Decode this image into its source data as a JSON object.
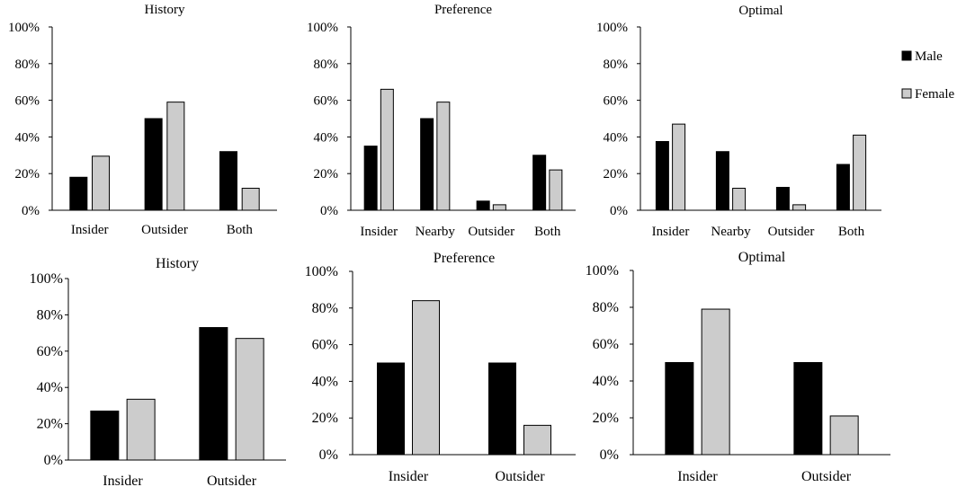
{
  "legend": {
    "position": "top-right",
    "items": [
      {
        "name": "Male",
        "color": "#000000"
      },
      {
        "name": "Female",
        "color": "#cccccc"
      }
    ]
  },
  "colors": {
    "male": "#000000",
    "female": "#cccccc",
    "axis": "#000000"
  },
  "chart_data": [
    {
      "type": "bar",
      "title": "History",
      "categories": [
        "Insider",
        "Outsider",
        "Both"
      ],
      "series": [
        {
          "name": "Male",
          "values": [
            18,
            50,
            32
          ]
        },
        {
          "name": "Female",
          "values": [
            29.5,
            59,
            12
          ]
        }
      ],
      "ylim": [
        0,
        100
      ],
      "yticks": [
        "0%",
        "20%",
        "40%",
        "60%",
        "80%",
        "100%"
      ],
      "xlabel": "",
      "ylabel": "",
      "grid": false
    },
    {
      "type": "bar",
      "title": "Preference",
      "categories": [
        "Insider",
        "Nearby",
        "Outsider",
        "Both"
      ],
      "series": [
        {
          "name": "Male",
          "values": [
            35,
            50,
            5,
            30
          ]
        },
        {
          "name": "Female",
          "values": [
            66,
            59,
            3,
            22
          ]
        }
      ],
      "ylim": [
        0,
        100
      ],
      "yticks": [
        "0%",
        "20%",
        "40%",
        "60%",
        "80%",
        "100%"
      ],
      "xlabel": "",
      "ylabel": "",
      "grid": false
    },
    {
      "type": "bar",
      "title": "Optimal",
      "categories": [
        "Insider",
        "Nearby",
        "Outsider",
        "Both"
      ],
      "series": [
        {
          "name": "Male",
          "values": [
            37.5,
            32,
            12.5,
            25
          ]
        },
        {
          "name": "Female",
          "values": [
            47,
            12,
            3,
            41
          ]
        }
      ],
      "ylim": [
        0,
        100
      ],
      "yticks": [
        "0%",
        "20%",
        "40%",
        "60%",
        "80%",
        "100%"
      ],
      "xlabel": "",
      "ylabel": "",
      "grid": false
    },
    {
      "type": "bar",
      "title": "History",
      "categories": [
        "Insider",
        "Outsider"
      ],
      "series": [
        {
          "name": "Male",
          "values": [
            27,
            73
          ]
        },
        {
          "name": "Female",
          "values": [
            33.5,
            67
          ]
        }
      ],
      "ylim": [
        0,
        100
      ],
      "yticks": [
        "0%",
        "20%",
        "40%",
        "60%",
        "80%",
        "100%"
      ],
      "xlabel": "",
      "ylabel": "",
      "grid": false
    },
    {
      "type": "bar",
      "title": "Preference",
      "categories": [
        "Insider",
        "Outsider"
      ],
      "series": [
        {
          "name": "Male",
          "values": [
            50,
            50
          ]
        },
        {
          "name": "Female",
          "values": [
            84,
            16
          ]
        }
      ],
      "ylim": [
        0,
        100
      ],
      "yticks": [
        "0%",
        "20%",
        "40%",
        "60%",
        "80%",
        "100%"
      ],
      "xlabel": "",
      "ylabel": "",
      "grid": false
    },
    {
      "type": "bar",
      "title": "Optimal",
      "categories": [
        "Insider",
        "Outsider"
      ],
      "series": [
        {
          "name": "Male",
          "values": [
            50,
            50
          ]
        },
        {
          "name": "Female",
          "values": [
            79,
            21
          ]
        }
      ],
      "ylim": [
        0,
        100
      ],
      "yticks": [
        "0%",
        "20%",
        "40%",
        "60%",
        "80%",
        "100%"
      ],
      "xlabel": "",
      "ylabel": "",
      "grid": false
    }
  ]
}
